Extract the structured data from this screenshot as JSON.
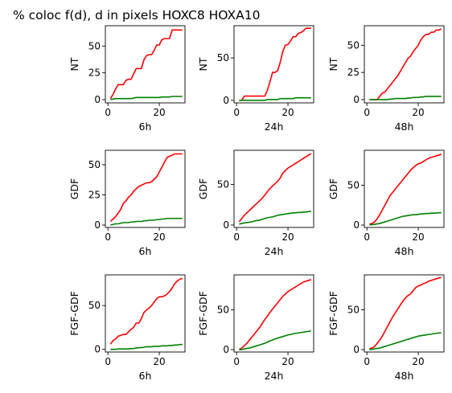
{
  "title": "% coloc f(d), d in pixels HOXC8  HOXA10",
  "colors": {
    "HOXC8": "#ff0000",
    "HOXA10": "#008000"
  },
  "chart_data": [
    {
      "type": "line",
      "row": 0,
      "col": 0,
      "xlabel": "6h",
      "ylabel": "NT",
      "xlim": [
        -1,
        30
      ],
      "ylim": [
        -3,
        69
      ],
      "xticks": [
        0,
        20
      ],
      "yticks": [
        0,
        25,
        50
      ],
      "x": [
        1,
        2,
        3,
        4,
        5,
        6,
        7,
        8,
        9,
        10,
        11,
        12,
        13,
        14,
        15,
        16,
        17,
        18,
        19,
        20,
        21,
        22,
        23,
        24,
        25,
        26,
        27,
        28,
        29
      ],
      "series": [
        {
          "color": "#ff0000",
          "values": [
            1,
            5,
            10,
            14,
            14,
            14,
            18,
            19,
            19,
            24,
            29,
            29,
            29,
            37,
            41,
            42,
            42,
            46,
            51,
            51,
            56,
            57,
            57,
            57,
            65,
            65,
            65,
            65,
            65
          ]
        },
        {
          "color": "#008000",
          "values": [
            0,
            0.5,
            1,
            1,
            1,
            1,
            1,
            1,
            1,
            1.5,
            2,
            2,
            2,
            2,
            2,
            2,
            2,
            2,
            2,
            2,
            2.5,
            2.5,
            2.5,
            2.5,
            3,
            3,
            3,
            3,
            3
          ]
        }
      ]
    },
    {
      "type": "line",
      "row": 0,
      "col": 1,
      "xlabel": "24h",
      "ylabel": "NT",
      "xlim": [
        -1,
        30
      ],
      "ylim": [
        -3,
        88
      ],
      "xticks": [
        0,
        20
      ],
      "yticks": [
        0,
        50
      ],
      "x": [
        1,
        2,
        3,
        4,
        5,
        6,
        7,
        8,
        9,
        10,
        11,
        12,
        13,
        14,
        15,
        16,
        17,
        18,
        19,
        20,
        21,
        22,
        23,
        24,
        25,
        26,
        27,
        28,
        29
      ],
      "series": [
        {
          "color": "#ff0000",
          "values": [
            0,
            0,
            5,
            5,
            5,
            5,
            5,
            5,
            5,
            5,
            5,
            12,
            22,
            33,
            33,
            35,
            45,
            58,
            65,
            66,
            70,
            75,
            75,
            79,
            80,
            82,
            85,
            85,
            85
          ]
        },
        {
          "color": "#008000",
          "values": [
            0,
            0,
            0,
            0,
            0,
            0,
            0,
            0,
            0,
            0,
            0,
            1,
            1,
            1,
            1,
            1,
            2,
            2,
            2,
            2,
            2,
            2,
            3,
            3,
            3,
            3,
            3,
            3,
            3
          ]
        }
      ]
    },
    {
      "type": "line",
      "row": 0,
      "col": 2,
      "xlabel": "48h",
      "ylabel": "NT",
      "xlim": [
        -1,
        30
      ],
      "ylim": [
        -3,
        68
      ],
      "xticks": [
        0,
        20
      ],
      "yticks": [
        0,
        25,
        50
      ],
      "x": [
        1,
        2,
        3,
        4,
        5,
        6,
        7,
        8,
        9,
        10,
        11,
        12,
        13,
        14,
        15,
        16,
        17,
        18,
        19,
        20,
        21,
        22,
        23,
        24,
        25,
        26,
        27,
        28,
        29
      ],
      "series": [
        {
          "color": "#ff0000",
          "values": [
            0,
            0,
            0,
            0,
            3,
            6,
            7,
            10,
            13,
            16,
            19,
            22,
            26,
            30,
            34,
            38,
            40,
            44,
            47,
            50,
            55,
            58,
            60,
            60,
            62,
            62,
            64,
            64,
            65
          ]
        },
        {
          "color": "#008000",
          "values": [
            0,
            0,
            0,
            0,
            0,
            0,
            0,
            0,
            0.5,
            0.5,
            1,
            1,
            1,
            1,
            1,
            1.5,
            1.5,
            2,
            2,
            2,
            2.5,
            2.5,
            3,
            3,
            3,
            3,
            3,
            3,
            3
          ]
        }
      ]
    },
    {
      "type": "line",
      "row": 1,
      "col": 0,
      "xlabel": "6h",
      "ylabel": "GDF",
      "xlim": [
        -1,
        30
      ],
      "ylim": [
        -2,
        62
      ],
      "xticks": [
        0,
        20
      ],
      "yticks": [
        0,
        25,
        50
      ],
      "x": [
        1,
        2,
        3,
        4,
        5,
        6,
        7,
        8,
        9,
        10,
        11,
        12,
        13,
        14,
        15,
        16,
        17,
        18,
        19,
        20,
        21,
        22,
        23,
        24,
        25,
        26,
        27,
        28,
        29
      ],
      "series": [
        {
          "color": "#ff0000",
          "values": [
            3,
            5,
            7,
            10,
            13,
            18,
            20,
            23,
            25,
            28,
            30,
            32,
            33,
            34,
            35,
            35,
            36,
            38,
            40,
            44,
            48,
            52,
            56,
            57,
            58,
            59,
            59,
            59,
            59
          ]
        },
        {
          "color": "#008000",
          "values": [
            0,
            0.5,
            1,
            1,
            1.5,
            2,
            2,
            2,
            2.5,
            2.5,
            3,
            3,
            3,
            3.5,
            3.5,
            4,
            4,
            4,
            4.5,
            4.5,
            5,
            5,
            5.5,
            5.5,
            5.5,
            5.5,
            5.5,
            5.5,
            5.5
          ]
        }
      ]
    },
    {
      "type": "line",
      "row": 1,
      "col": 1,
      "xlabel": "24h",
      "ylabel": "GDF",
      "xlim": [
        -1,
        30
      ],
      "ylim": [
        -3,
        92
      ],
      "xticks": [
        0,
        20
      ],
      "yticks": [
        0,
        50
      ],
      "x": [
        1,
        2,
        3,
        4,
        5,
        6,
        7,
        8,
        9,
        10,
        11,
        12,
        13,
        14,
        15,
        16,
        17,
        18,
        19,
        20,
        21,
        22,
        23,
        24,
        25,
        26,
        27,
        28,
        29
      ],
      "series": [
        {
          "color": "#ff0000",
          "values": [
            4,
            8,
            12,
            15,
            18,
            21,
            24,
            27,
            30,
            33,
            37,
            41,
            45,
            48,
            51,
            54,
            58,
            64,
            67,
            70,
            72,
            74,
            76,
            78,
            80,
            82,
            84,
            86,
            88
          ]
        },
        {
          "color": "#008000",
          "values": [
            1,
            2,
            2.5,
            3,
            3.5,
            4,
            5,
            5.5,
            6,
            7,
            8,
            9,
            9.5,
            10,
            11,
            12,
            12.5,
            13,
            13.5,
            14,
            14.5,
            15,
            15,
            15.5,
            15.5,
            16,
            16,
            16.5,
            17
          ]
        }
      ]
    },
    {
      "type": "line",
      "row": 1,
      "col": 2,
      "xlabel": "48h",
      "ylabel": "GDF",
      "xlim": [
        -1,
        30
      ],
      "ylim": [
        -3,
        94
      ],
      "xticks": [
        0,
        20
      ],
      "yticks": [
        0,
        50
      ],
      "x": [
        1,
        2,
        3,
        4,
        5,
        6,
        7,
        8,
        9,
        10,
        11,
        12,
        13,
        14,
        15,
        16,
        17,
        18,
        19,
        20,
        21,
        22,
        23,
        24,
        25,
        26,
        27,
        28,
        29
      ],
      "series": [
        {
          "color": "#ff0000",
          "values": [
            1,
            2,
            4,
            8,
            13,
            19,
            25,
            31,
            37,
            41,
            45,
            49,
            53,
            57,
            61,
            65,
            69,
            72,
            75,
            77,
            78,
            80,
            82,
            84,
            85,
            86,
            87,
            88,
            89
          ]
        },
        {
          "color": "#008000",
          "values": [
            0.5,
            0.5,
            1,
            1.5,
            2,
            3,
            4,
            5,
            6,
            7,
            8,
            9,
            10,
            11,
            11.5,
            12,
            12.5,
            13,
            13,
            13.5,
            14,
            14,
            14.5,
            14.5,
            15,
            15,
            15,
            15.5,
            15.5
          ]
        }
      ]
    },
    {
      "type": "line",
      "row": 2,
      "col": 0,
      "xlabel": "6h",
      "ylabel": "FGF-GDF",
      "xlim": [
        -1,
        30
      ],
      "ylim": [
        -3,
        85
      ],
      "xticks": [
        0,
        20
      ],
      "yticks": [
        0,
        50
      ],
      "x": [
        1,
        2,
        3,
        4,
        5,
        6,
        7,
        8,
        9,
        10,
        11,
        12,
        13,
        14,
        15,
        16,
        17,
        18,
        19,
        20,
        21,
        22,
        23,
        24,
        25,
        26,
        27,
        28,
        29
      ],
      "series": [
        {
          "color": "#ff0000",
          "values": [
            6,
            10,
            12,
            15,
            16,
            17,
            17,
            20,
            23,
            25,
            30,
            30,
            35,
            42,
            45,
            47,
            50,
            54,
            58,
            60,
            60,
            61,
            63,
            66,
            70,
            75,
            78,
            80,
            81
          ]
        },
        {
          "color": "#008000",
          "values": [
            0,
            0,
            0,
            0.5,
            0.5,
            0.5,
            0.5,
            0.5,
            1,
            1,
            1.5,
            2,
            2,
            2.5,
            3,
            3,
            3,
            3.5,
            3.5,
            3.5,
            4,
            4,
            4,
            4.5,
            4.5,
            5,
            5,
            5.5,
            5.5
          ]
        }
      ]
    },
    {
      "type": "line",
      "row": 2,
      "col": 1,
      "xlabel": "24h",
      "ylabel": "FGF-GDF",
      "xlim": [
        -1,
        30
      ],
      "ylim": [
        -3,
        94
      ],
      "xticks": [
        0,
        20
      ],
      "yticks": [
        0,
        50
      ],
      "x": [
        1,
        2,
        3,
        4,
        5,
        6,
        7,
        8,
        9,
        10,
        11,
        12,
        13,
        14,
        15,
        16,
        17,
        18,
        19,
        20,
        21,
        22,
        23,
        24,
        25,
        26,
        27,
        28,
        29
      ],
      "series": [
        {
          "color": "#ff0000",
          "values": [
            0,
            2,
            5,
            8,
            12,
            16,
            20,
            24,
            28,
            33,
            38,
            42,
            47,
            51,
            55,
            59,
            63,
            67,
            70,
            73,
            75,
            77,
            79,
            81,
            83,
            85,
            86,
            87,
            88
          ]
        },
        {
          "color": "#008000",
          "values": [
            0,
            0,
            1,
            1.5,
            2,
            3,
            4,
            5,
            6,
            7,
            8,
            9.5,
            11,
            12,
            13.5,
            14.5,
            15.5,
            16.5,
            17.5,
            18.5,
            19,
            20,
            20.5,
            21,
            21.5,
            22,
            22.5,
            23,
            23.5
          ]
        }
      ]
    },
    {
      "type": "line",
      "row": 2,
      "col": 2,
      "xlabel": "48h",
      "ylabel": "FGF-GDF",
      "xlim": [
        -1,
        30
      ],
      "ylim": [
        -3,
        94
      ],
      "xticks": [
        0,
        20
      ],
      "yticks": [
        0,
        50
      ],
      "x": [
        1,
        2,
        3,
        4,
        5,
        6,
        7,
        8,
        9,
        10,
        11,
        12,
        13,
        14,
        15,
        16,
        17,
        18,
        19,
        20,
        21,
        22,
        23,
        24,
        25,
        26,
        27,
        28,
        29
      ],
      "series": [
        {
          "color": "#ff0000",
          "values": [
            1,
            2,
            4,
            8,
            12,
            17,
            23,
            29,
            35,
            41,
            46,
            51,
            56,
            61,
            65,
            68,
            70,
            74,
            78,
            80,
            81,
            83,
            84,
            86,
            87,
            88,
            89,
            90,
            91
          ]
        },
        {
          "color": "#008000",
          "values": [
            0,
            0.5,
            1,
            1.5,
            2,
            3,
            4,
            5,
            6,
            7,
            8,
            9,
            10,
            11,
            12,
            13,
            14,
            15,
            16,
            17,
            17.5,
            18,
            18.5,
            19,
            19.5,
            20,
            20.5,
            21,
            21
          ]
        }
      ]
    }
  ]
}
